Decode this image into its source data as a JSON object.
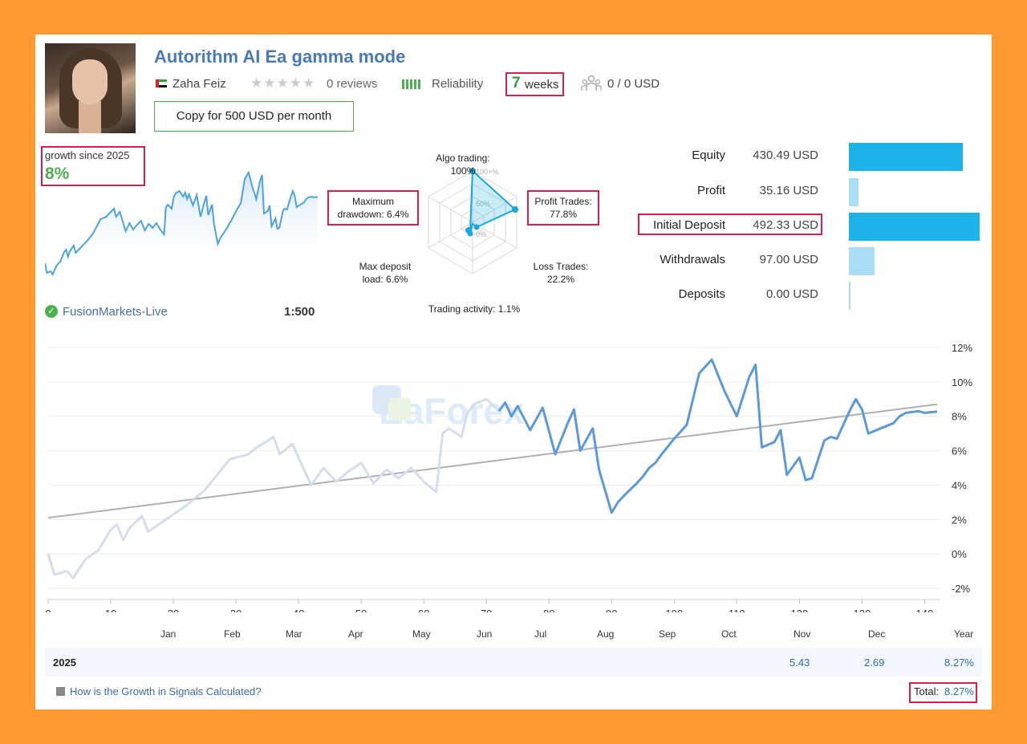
{
  "header": {
    "title": "Autorithm AI Ea gamma mode",
    "author": "Zaha Feiz",
    "stars": "★★★★★",
    "reviews": "0 reviews",
    "reliability": "Reliability",
    "weeks_num": "7",
    "weeks_label": "weeks",
    "subscribers": "0 / 0 USD",
    "copy_button": "Copy for 500 USD per month"
  },
  "growth": {
    "label": "growth since 2025",
    "value": "8%"
  },
  "broker": {
    "name": "FusionMarkets-Live",
    "leverage": "1:500"
  },
  "radar": {
    "algo": "Algo trading: 100%",
    "profit_trades": [
      "Profit Trades:",
      "77.8%"
    ],
    "loss_trades": [
      "Loss Trades:",
      "22.2%"
    ],
    "trading_activity": "Trading activity: 1.1%",
    "max_deposit_load": [
      "Max deposit",
      "load: 6.6%"
    ],
    "max_drawdown": [
      "Maximum",
      "drawdown: 6.4%"
    ],
    "scale": [
      "100+%",
      "50%",
      "0%"
    ]
  },
  "stats": [
    {
      "label": "Equity",
      "value": "430.49 USD",
      "fraction": 0.874
    },
    {
      "label": "Profit",
      "value": "35.16 USD",
      "fraction": 0.071
    },
    {
      "label": "Initial Deposit",
      "value": "492.33 USD",
      "fraction": 1.0
    },
    {
      "label": "Withdrawals",
      "value": "97.00 USD",
      "fraction": 0.197
    },
    {
      "label": "Deposits",
      "value": "0.00 USD",
      "fraction": 0.0
    }
  ],
  "chart": {
    "y_ticks": [
      "12%",
      "10%",
      "8%",
      "6%",
      "4%",
      "2%",
      "0%",
      "-2%"
    ],
    "x_ticks": [
      "0",
      "10",
      "20",
      "30",
      "40",
      "50",
      "60",
      "70",
      "80",
      "90",
      "100",
      "110",
      "120",
      "130",
      "140"
    ],
    "months": [
      "Jan",
      "Feb",
      "Mar",
      "Apr",
      "May",
      "Jun",
      "Jul",
      "Aug",
      "Sep",
      "Oct",
      "Nov",
      "Dec",
      "Year"
    ]
  },
  "chart_data": {
    "type": "line",
    "xlabel": "",
    "ylabel": "",
    "ylim": [
      -2,
      12
    ],
    "xlim": [
      0,
      142
    ],
    "series": [
      {
        "x": [
          0,
          1,
          3,
          4,
          6,
          8,
          9,
          10,
          11,
          12,
          13,
          15,
          16,
          18,
          22,
          25,
          29,
          32,
          33,
          36,
          37,
          39,
          42,
          44,
          46,
          48,
          50,
          52,
          54,
          56,
          58,
          60,
          62,
          63,
          64,
          66,
          67,
          68,
          70,
          72,
          73,
          74,
          75,
          77,
          79,
          81,
          83,
          84,
          85,
          87,
          88,
          90,
          91,
          92,
          94,
          95,
          96,
          97,
          98,
          100,
          102,
          104,
          106,
          108,
          110,
          112,
          113,
          114,
          116,
          117,
          118,
          120,
          121,
          122,
          124,
          125,
          126,
          127,
          128,
          129,
          130,
          131,
          133,
          135,
          136,
          137,
          139,
          140,
          142
        ],
        "y": [
          0,
          -1.2,
          -1.0,
          -1.4,
          -0.3,
          0.2,
          0.8,
          1.4,
          1.7,
          0.8,
          1.5,
          2.2,
          1.3,
          1.8,
          2.8,
          3.7,
          5.5,
          5.8,
          6.1,
          6.8,
          5.8,
          6.4,
          4.0,
          5.0,
          4.2,
          4.8,
          5.3,
          4.1,
          4.9,
          4.4,
          5.0,
          4.2,
          3.6,
          7.0,
          7.3,
          6.8,
          8.2,
          8.7,
          9.0,
          8.3,
          8.8,
          8.0,
          8.6,
          7.2,
          8.5,
          5.8,
          7.6,
          8.4,
          6.0,
          7.3,
          4.9,
          2.4,
          3.0,
          3.4,
          4.1,
          4.5,
          5.0,
          5.3,
          5.8,
          6.7,
          7.5,
          10.5,
          11.3,
          9.5,
          8.0,
          10.3,
          11.0,
          6.2,
          6.5,
          7.2,
          4.6,
          5.6,
          4.3,
          4.4,
          6.6,
          6.8,
          6.7,
          7.5,
          8.3,
          9.0,
          8.4,
          7.0,
          7.3,
          7.6,
          8.0,
          8.2,
          8.3,
          8.2,
          8.27
        ]
      },
      {
        "name": "trend",
        "x": [
          0,
          142
        ],
        "y": [
          2.1,
          8.7
        ]
      }
    ],
    "year_row": {
      "label": "2025",
      "values": [
        "5.43",
        "2.69",
        "8.27%"
      ]
    },
    "total": {
      "label": "Total:",
      "value": "8.27%"
    }
  }
}
